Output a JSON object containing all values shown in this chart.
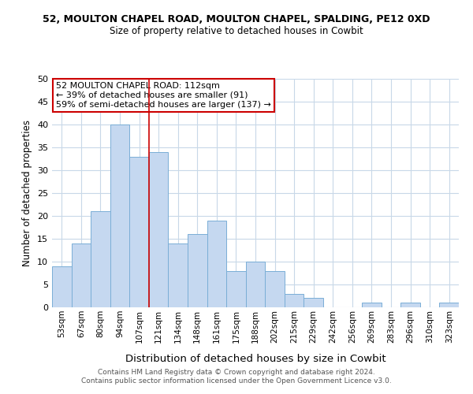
{
  "title_line1": "52, MOULTON CHAPEL ROAD, MOULTON CHAPEL, SPALDING, PE12 0XD",
  "title_line2": "Size of property relative to detached houses in Cowbit",
  "xlabel": "Distribution of detached houses by size in Cowbit",
  "ylabel": "Number of detached properties",
  "bar_labels": [
    "53sqm",
    "67sqm",
    "80sqm",
    "94sqm",
    "107sqm",
    "121sqm",
    "134sqm",
    "148sqm",
    "161sqm",
    "175sqm",
    "188sqm",
    "202sqm",
    "215sqm",
    "229sqm",
    "242sqm",
    "256sqm",
    "269sqm",
    "283sqm",
    "296sqm",
    "310sqm",
    "323sqm"
  ],
  "bar_values": [
    9,
    14,
    21,
    40,
    33,
    34,
    14,
    16,
    19,
    8,
    10,
    8,
    3,
    2,
    0,
    0,
    1,
    0,
    1,
    0,
    1
  ],
  "bar_color": "#c5d8f0",
  "bar_edge_color": "#7aaed6",
  "vline_x_index": 4.5,
  "vline_color": "#cc0000",
  "annotation_title": "52 MOULTON CHAPEL ROAD: 112sqm",
  "annotation_line1": "← 39% of detached houses are smaller (91)",
  "annotation_line2": "59% of semi-detached houses are larger (137) →",
  "annotation_box_color": "#ffffff",
  "annotation_box_edge": "#cc0000",
  "ylim": [
    0,
    50
  ],
  "yticks": [
    0,
    5,
    10,
    15,
    20,
    25,
    30,
    35,
    40,
    45,
    50
  ],
  "footer_line1": "Contains HM Land Registry data © Crown copyright and database right 2024.",
  "footer_line2": "Contains public sector information licensed under the Open Government Licence v3.0.",
  "background_color": "#ffffff",
  "grid_color": "#c8d8e8"
}
